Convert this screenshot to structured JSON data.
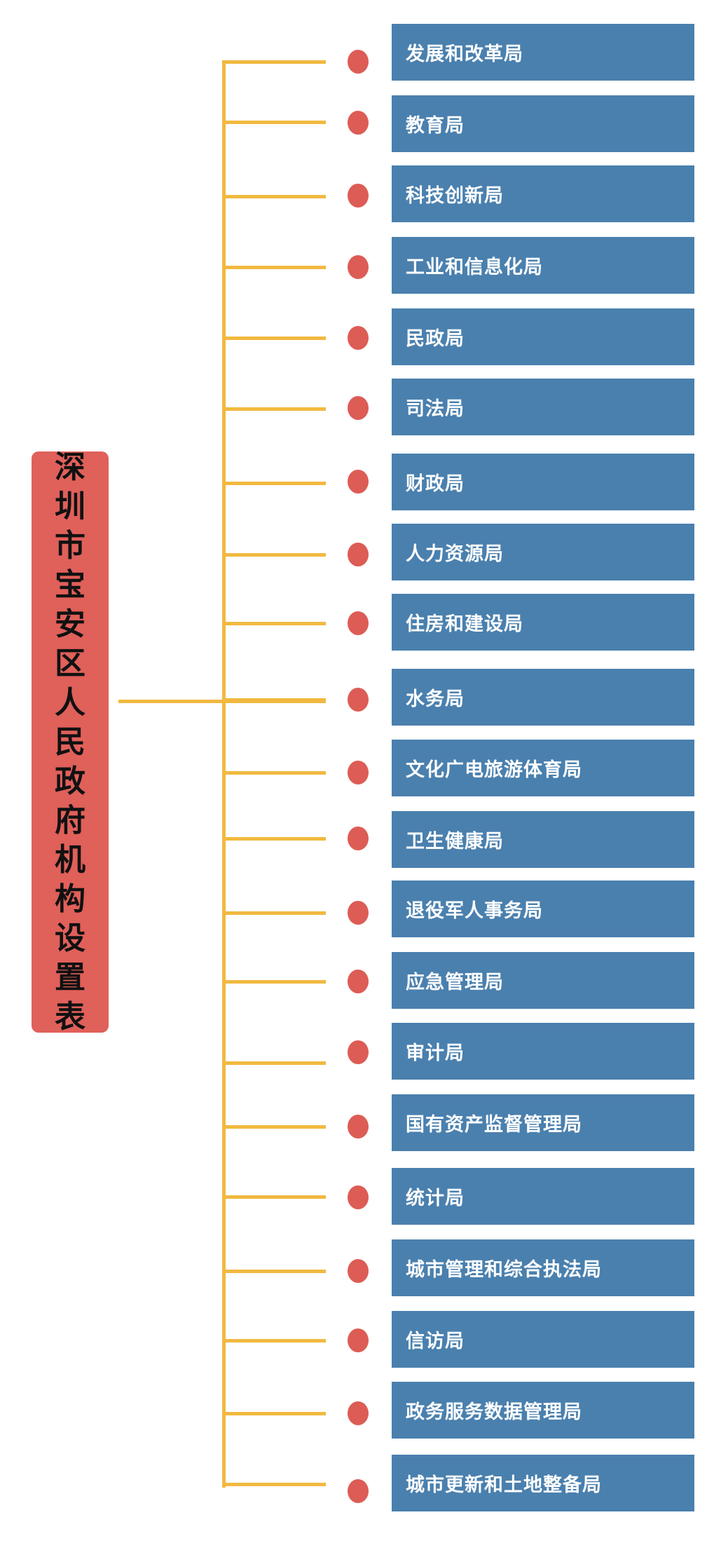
{
  "title": "深圳市宝安区人民政府机构设置表",
  "colors": {
    "root_box": "#e0605a",
    "connector": "#f0b940",
    "dot": "#dd5c55",
    "department_box": "#4a80ae"
  },
  "departments": [
    "发展和改革局",
    "教育局",
    "科技创新局",
    "工业和信息化局",
    "民政局",
    "司法局",
    "财政局",
    "人力资源局",
    "住房和建设局",
    "水务局",
    "文化广电旅游体育局",
    "卫生健康局",
    "退役军人事务局",
    "应急管理局",
    "审计局",
    "国有资产监督管理局",
    "统计局",
    "城市管理和综合执法局",
    "信访局",
    "政务服务数据管理局",
    "城市更新和土地整备局"
  ]
}
